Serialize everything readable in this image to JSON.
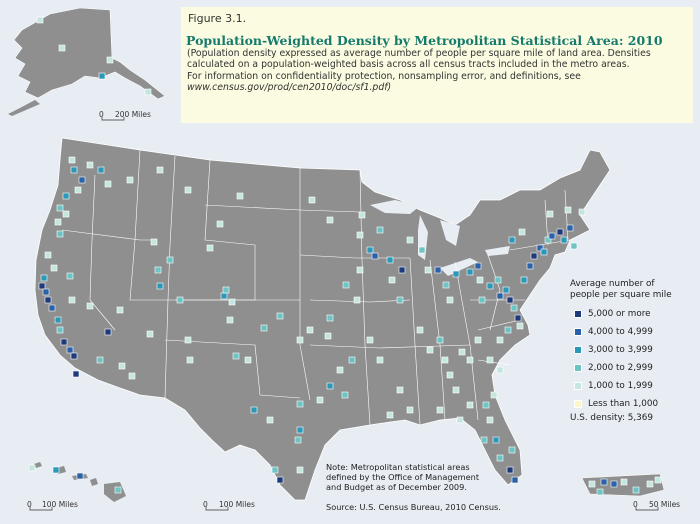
{
  "figure": {
    "number": "Figure 3.1.",
    "title": "Population-Weighted Density by Metropolitan Statistical Area: 2010",
    "subtitle_lines": [
      "(Population density expressed as average number of people per square mile of land area. Densities",
      "calculated on a population-weighted basis across all census tracts included in the metro areas.",
      "For information on confidentiality protection, nonsampling error, and definitions, see"
    ],
    "subtitle_url": "www.census.gov/prod/cen2010/doc/sf1.pdf)"
  },
  "insets": {
    "alaska_scale": [
      "0",
      "200 Miles"
    ],
    "hawaii_scale": [
      "0",
      "100 Miles"
    ],
    "mainland_scale": [
      "0",
      "100 Miles"
    ],
    "puerto_rico_scale": [
      "0",
      "50 Miles"
    ]
  },
  "legend": {
    "title_lines": [
      "Average number of",
      "people per square mile"
    ],
    "classes": [
      {
        "label": "5,000 or more",
        "color": "#1d3a7a"
      },
      {
        "label": "4,000 to 4,999",
        "color": "#2b61a8"
      },
      {
        "label": "3,000 to 3,999",
        "color": "#2b98b8"
      },
      {
        "label": "2,000 to 2,999",
        "color": "#6ec3c4"
      },
      {
        "label": "1,000 to 1,999",
        "color": "#c5e6de"
      },
      {
        "label": "Less than 1,000",
        "color": "#fbf7c9"
      }
    ],
    "us_density": "U.S. density: 5,369"
  },
  "note_lines": [
    "Note: Metropolitan statistical areas",
    "defined by the Office of Management",
    "and Budget as of December 2009."
  ],
  "source": "Source: U.S. Census Bureau, 2010 Census.",
  "colors": {
    "land": "#8f8f8f",
    "background": "#e8edf3",
    "border": "#ffffff",
    "title_green": "#15796b"
  }
}
